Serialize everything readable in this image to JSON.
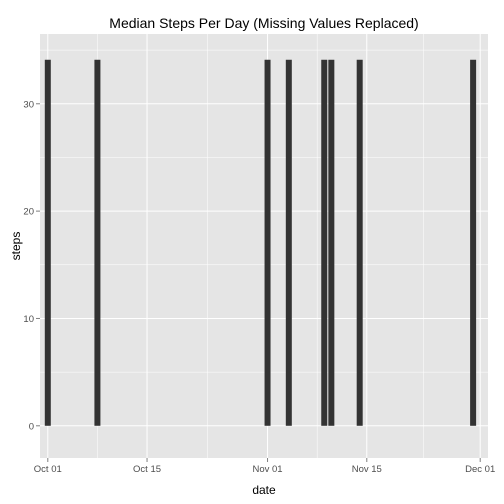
{
  "chart_data": {
    "type": "bar",
    "title": "Median Steps Per Day (Missing Values Replaced)",
    "xlabel": "date",
    "ylabel": "steps",
    "x_tick_labels": [
      "Oct 01",
      "Oct 15",
      "Nov 01",
      "Nov 15",
      "Dec 01"
    ],
    "y_tick_labels": [
      "0",
      "10",
      "20",
      "30"
    ],
    "ylim": [
      -3,
      36.5
    ],
    "grid": true,
    "colors": {
      "panel": "#e5e5e5",
      "grid": "#ffffff",
      "bar": "#333333"
    },
    "categories": [
      "2012-10-01",
      "2012-10-08",
      "2012-11-01",
      "2012-11-04",
      "2012-11-09",
      "2012-11-10",
      "2012-11-14",
      "2012-11-30"
    ],
    "values": [
      34.1,
      34.1,
      34.1,
      34.1,
      34.1,
      34.1,
      34.1,
      34.1
    ]
  }
}
